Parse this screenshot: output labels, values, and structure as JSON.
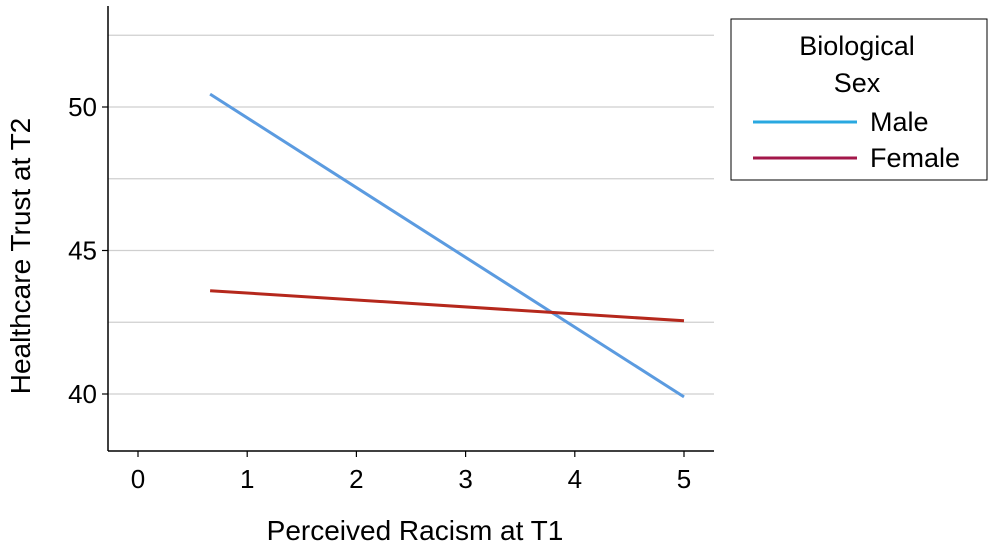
{
  "chart_data": {
    "type": "line",
    "title": "",
    "xlabel": "Perceived Racism at T1",
    "ylabel": "Healthcare Trust at T2",
    "xlim": [
      -0.3,
      5.3
    ],
    "ylim": [
      38.0,
      53.5
    ],
    "x_ticks": [
      0,
      1,
      2,
      3,
      4,
      5
    ],
    "y_ticks": [
      40,
      45,
      50
    ],
    "gridlines_y": [
      40.0,
      42.5,
      45.0,
      47.5,
      50.0,
      52.5
    ],
    "grid": "horizontal",
    "legend": {
      "title_line1": "Biological",
      "title_line2": "Sex",
      "placement": "right"
    },
    "series": [
      {
        "name": "Male",
        "color": "#5B9BE0",
        "legend_color": "#29A8E0",
        "x": [
          0.66,
          5.0
        ],
        "y": [
          50.45,
          39.9
        ]
      },
      {
        "name": "Female",
        "color": "#B5281C",
        "legend_color": "#A3174A",
        "x": [
          0.66,
          5.0
        ],
        "y": [
          43.6,
          42.55
        ]
      }
    ]
  }
}
